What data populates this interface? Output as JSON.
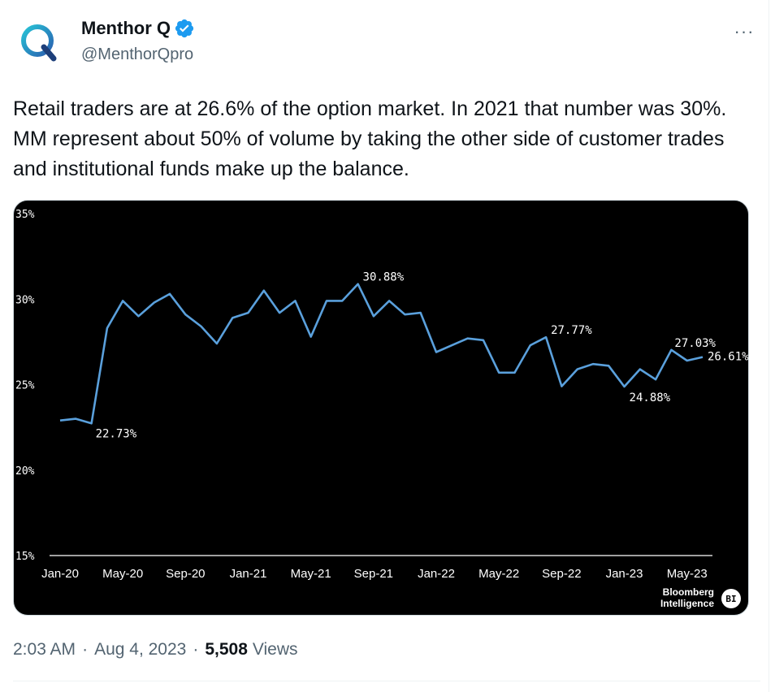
{
  "author": {
    "name": "Menthor Q",
    "handle": "@MenthorQpro",
    "verified_color": "#1d9bf0"
  },
  "more_label": "···",
  "tweet_text": "Retail traders are at 26.6% of the option market. In 2021 that number was 30%. MM represent about 50% of volume by taking the other side of customer trades and institutional funds make up the balance.",
  "meta": {
    "time": "2:03 AM",
    "date": "Aug 4, 2023",
    "views_count": "5,508",
    "views_label": "Views"
  },
  "chart_data": {
    "type": "line",
    "title": "",
    "xlabel": "",
    "ylabel": "",
    "ylim": [
      15,
      35
    ],
    "yticks": [
      "35%",
      "30%",
      "25%",
      "20%",
      "15%"
    ],
    "ytick_values": [
      35,
      30,
      25,
      20,
      15
    ],
    "xticks": [
      "Jan-20",
      "May-20",
      "Sep-20",
      "Jan-21",
      "May-21",
      "Sep-21",
      "Jan-22",
      "May-22",
      "Sep-22",
      "Jan-23",
      "May-23"
    ],
    "series": [
      {
        "color": "#5aa0dc",
        "values": [
          22.9,
          23.0,
          22.73,
          28.3,
          29.9,
          29.0,
          29.8,
          30.3,
          29.1,
          28.4,
          27.4,
          28.9,
          29.2,
          30.5,
          29.2,
          29.9,
          27.8,
          29.9,
          29.9,
          30.88,
          29.0,
          29.9,
          29.1,
          29.2,
          26.9,
          27.3,
          27.7,
          27.6,
          25.7,
          25.7,
          27.3,
          27.77,
          24.9,
          25.9,
          26.2,
          26.1,
          24.88,
          25.9,
          25.3,
          27.03,
          26.4,
          26.61
        ]
      }
    ],
    "annotations": [
      {
        "label": "22.73%",
        "index": 2,
        "value": 22.73
      },
      {
        "label": "30.88%",
        "index": 19,
        "value": 30.88
      },
      {
        "label": "27.77%",
        "index": 31,
        "value": 27.77
      },
      {
        "label": "24.88%",
        "index": 36,
        "value": 24.88
      },
      {
        "label": "27.03%",
        "index": 39,
        "value": 27.03
      },
      {
        "label": "26.61%",
        "index": 41,
        "value": 26.61
      }
    ],
    "source_lines": [
      "Bloomberg",
      "Intelligence"
    ],
    "source_badge": "BI"
  }
}
